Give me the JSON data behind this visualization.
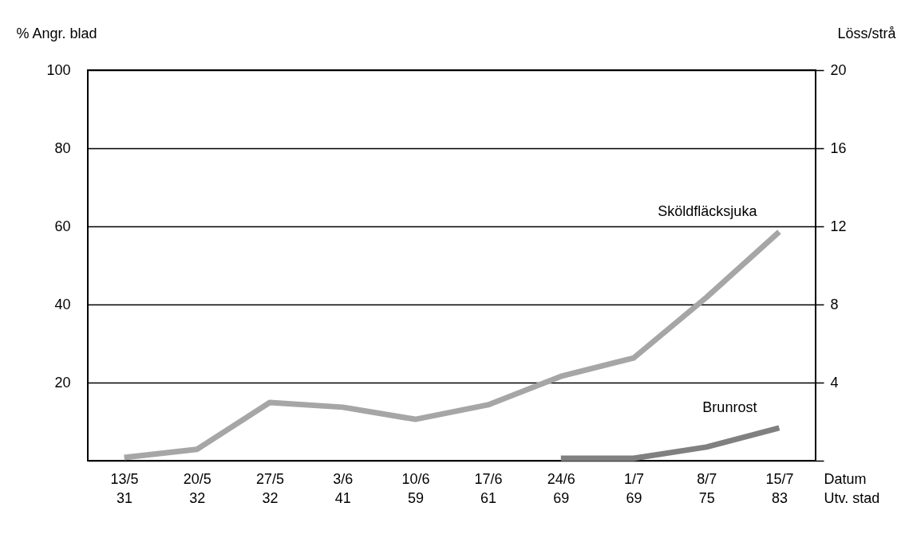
{
  "chart_data": {
    "type": "line",
    "categories": [
      "13/5\n31",
      "20/5\n32",
      "27/5\n32",
      "3/6\n41",
      "10/6\n59",
      "17/6\n61",
      "24/6\n69",
      "1/7\n69",
      "8/7\n75",
      "15/7\n83"
    ],
    "xlabel": "Datum\nUtv. stad",
    "ylabel": "% Angr. blad",
    "y2label": "Löss/strå",
    "series": [
      {
        "name": "Sköldfläcksjuka",
        "color": "#a6a6a6",
        "values": [
          0.8,
          2.9,
          14.9,
          13.7,
          10.6,
          14.3,
          21.6,
          26.3,
          41.8,
          58.6
        ]
      },
      {
        "name": "Brunrost",
        "color": "#808080",
        "values": [
          null,
          null,
          null,
          null,
          null,
          null,
          0.6,
          0.6,
          3.5,
          8.4
        ]
      }
    ],
    "ylim": [
      0,
      100
    ],
    "yticks": [
      {
        "value": 0,
        "label": null
      },
      20,
      40,
      60,
      80,
      100
    ],
    "y2lim": [
      0,
      20
    ],
    "y2ticks": [
      {
        "value": 0,
        "label": null
      },
      4,
      8,
      12,
      16,
      20
    ],
    "grid": "y",
    "legend": false,
    "line_style": "solid",
    "marker": "none"
  }
}
